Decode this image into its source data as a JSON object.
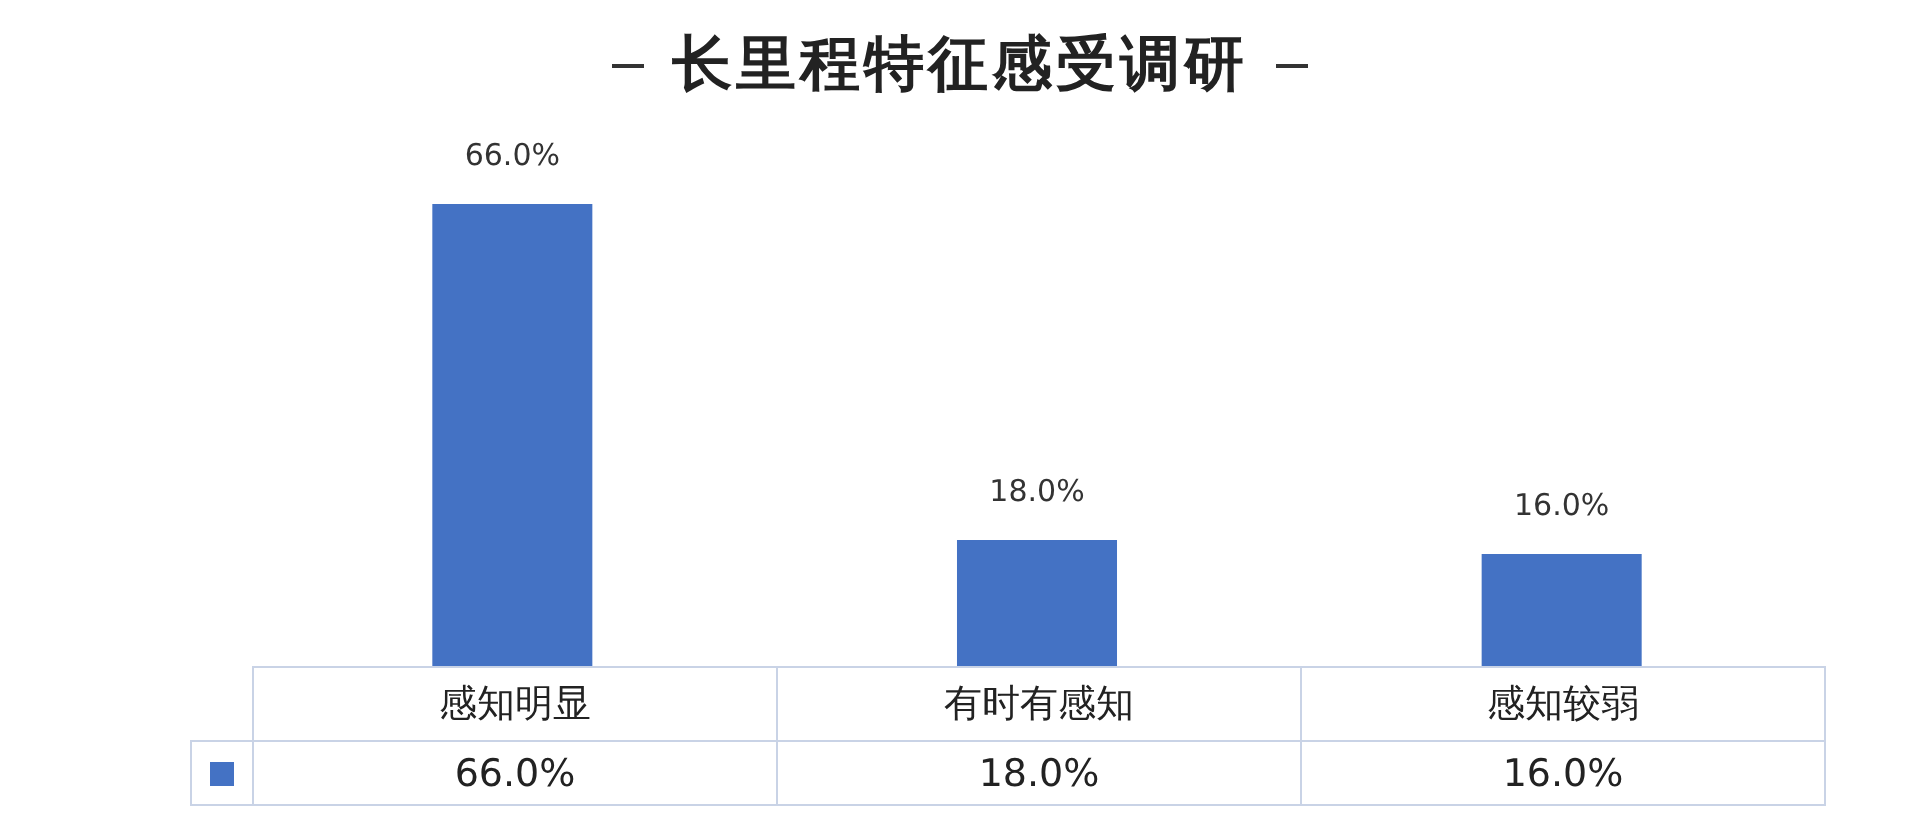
{
  "chart_data": {
    "type": "bar",
    "title": "长里程特征感受调研",
    "categories": [
      "感知明显",
      "有时有感知",
      "感知较弱"
    ],
    "series": [
      {
        "color": "#4472c4",
        "values": [
          66,
          18,
          16
        ],
        "value_labels": [
          "66.0%",
          "18.0%",
          "16.0%"
        ]
      }
    ]
  }
}
